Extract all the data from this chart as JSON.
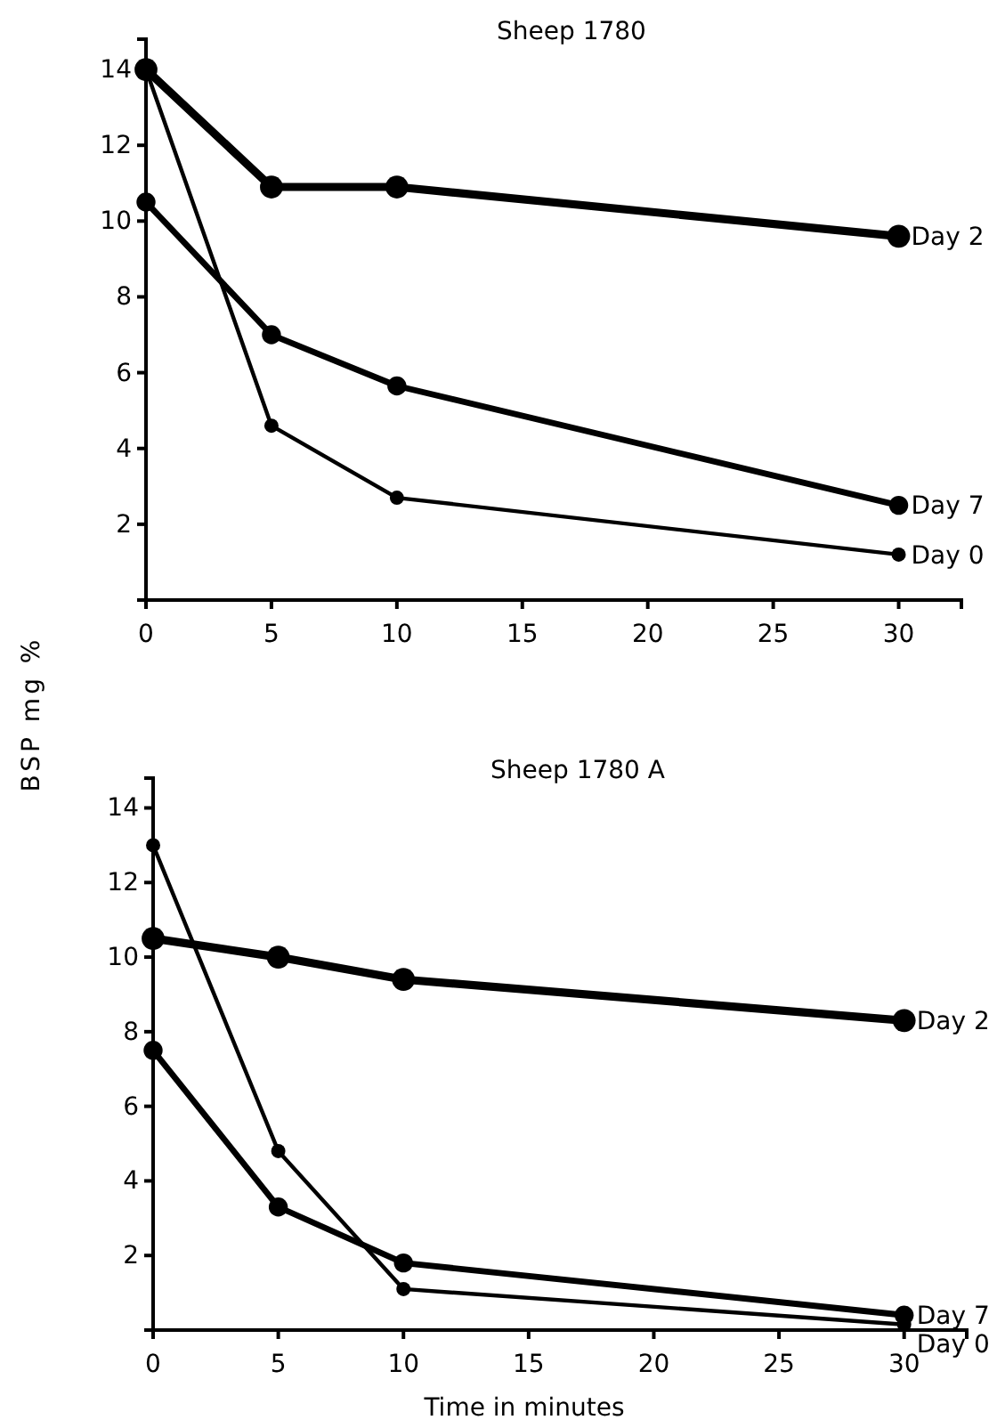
{
  "chart_data": [
    {
      "type": "line",
      "title": "Sheep 1780",
      "ylabel": "BSP mg %",
      "x": [
        0,
        5,
        10,
        30
      ],
      "xlim": [
        0,
        32.5
      ],
      "ylim": [
        0,
        14.8
      ],
      "xticks": [
        0,
        5,
        10,
        15,
        20,
        25,
        30
      ],
      "yticks": [
        2,
        4,
        6,
        8,
        10,
        12,
        14
      ],
      "marker": "circle",
      "line_style": "solid",
      "legend": false,
      "grid": false,
      "series": [
        {
          "name": "Day 2",
          "color": "#000000",
          "values": [
            14,
            10.9,
            10.9,
            9.6
          ]
        },
        {
          "name": "Day 7",
          "color": "#000000",
          "values": [
            10.5,
            7.0,
            5.65,
            2.5
          ]
        },
        {
          "name": "Day 0",
          "color": "#000000",
          "values": [
            14,
            4.6,
            2.7,
            1.2
          ]
        }
      ]
    },
    {
      "type": "line",
      "title": "Sheep 1780 A",
      "xlabel": "Time in minutes",
      "x": [
        0,
        5,
        10,
        30
      ],
      "xlim": [
        0,
        32.5
      ],
      "ylim": [
        0,
        14.8
      ],
      "xticks": [
        0,
        5,
        10,
        15,
        20,
        25,
        30
      ],
      "yticks": [
        2,
        4,
        6,
        8,
        10,
        12,
        14
      ],
      "marker": "circle",
      "line_style": "solid",
      "legend": false,
      "grid": false,
      "series": [
        {
          "name": "Day 2",
          "color": "#000000",
          "values": [
            10.5,
            10.0,
            9.4,
            8.3
          ]
        },
        {
          "name": "Day 7",
          "color": "#000000",
          "values": [
            7.5,
            3.3,
            1.8,
            0.4
          ]
        },
        {
          "name": "Day 0",
          "color": "#000000",
          "values": [
            13,
            4.8,
            1.1,
            0.15
          ]
        }
      ]
    }
  ]
}
